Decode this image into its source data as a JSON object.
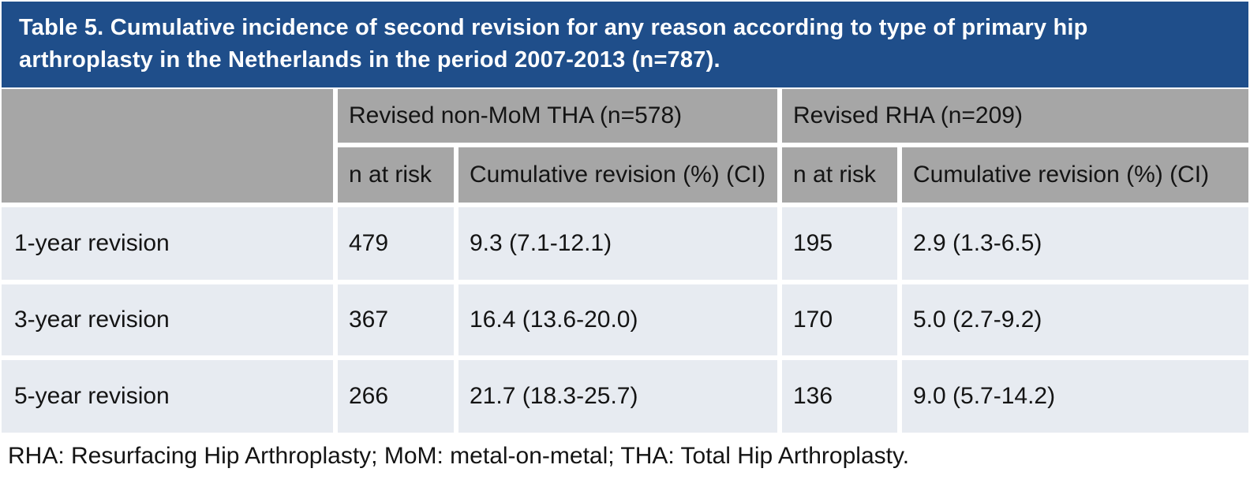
{
  "title": {
    "line1": "Table 5. Cumulative incidence of second revision for any reason according to type of primary hip",
    "line2": "arthroplasty in the Netherlands in the period 2007-2013 (n=787)."
  },
  "table": {
    "group_headers": {
      "tha": "Revised non-MoM THA (n=578)",
      "rha": "Revised RHA (n=209)"
    },
    "sub_headers": {
      "tha_n_at_risk": "n at risk",
      "tha_cumulative": "Cumulative revision (%) (CI)",
      "rha_n_at_risk": "n at risk",
      "rha_cumulative": "Cumulative revision (%) (CI)"
    },
    "rows": [
      {
        "label": "1-year revision",
        "tha_n_at_risk": "479",
        "tha_cumulative": "9.3 (7.1-12.1)",
        "rha_n_at_risk": "195",
        "rha_cumulative": "2.9 (1.3-6.5)"
      },
      {
        "label": "3-year revision",
        "tha_n_at_risk": "367",
        "tha_cumulative": "16.4 (13.6-20.0)",
        "rha_n_at_risk": "170",
        "rha_cumulative": "5.0 (2.7-9.2)"
      },
      {
        "label": "5-year revision",
        "tha_n_at_risk": "266",
        "tha_cumulative": "21.7 (18.3-25.7)",
        "rha_n_at_risk": "136",
        "rha_cumulative": "9.0 (5.7-14.2)"
      }
    ],
    "footnote": "RHA: Resurfacing Hip Arthroplasty; MoM: metal-on-metal; THA: Total Hip Arthroplasty."
  },
  "chart_data": {
    "type": "table",
    "title": "Table 5. Cumulative incidence of second revision for any reason according to type of primary hip arthroplasty in the Netherlands in the period 2007-2013 (n=787).",
    "column_groups": [
      "Revised non-MoM THA (n=578)",
      "Revised RHA (n=209)"
    ],
    "columns": [
      "",
      "n at risk",
      "Cumulative revision (%) (CI)",
      "n at risk",
      "Cumulative revision (%) (CI)"
    ],
    "rows": [
      [
        "1-year revision",
        "479",
        "9.3 (7.1-12.1)",
        "195",
        "2.9 (1.3-6.5)"
      ],
      [
        "3-year revision",
        "367",
        "16.4 (13.6-20.0)",
        "170",
        "5.0 (2.7-9.2)"
      ],
      [
        "5-year revision",
        "266",
        "21.7 (18.3-25.7)",
        "136",
        "9.0 (5.7-14.2)"
      ]
    ],
    "footnote": "RHA: Resurfacing Hip Arthroplasty; MoM: metal-on-metal; THA: Total Hip Arthroplasty."
  },
  "colors": {
    "title_bar": "#1F4E8A",
    "title_text": "#FFFFFF",
    "header_fill": "#A6A6A6",
    "row_fill": "#E7EBF1",
    "body_text": "#141414"
  }
}
